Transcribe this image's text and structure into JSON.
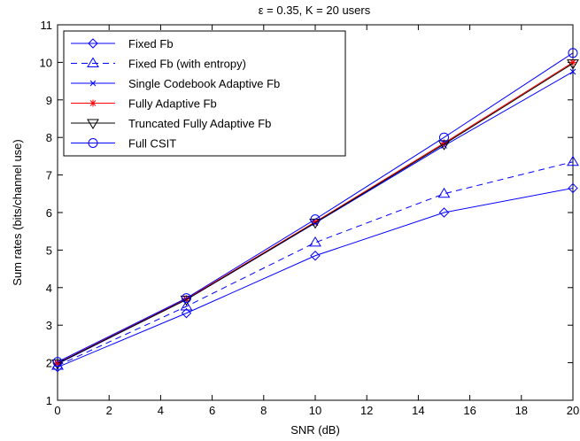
{
  "chart_data": {
    "type": "line",
    "title": "ε =   0.35, K = 20 users",
    "xlabel": "SNR (dB)",
    "ylabel": "Sum rates (bits/channel use)",
    "xlim": [
      0,
      20
    ],
    "ylim": [
      1,
      11
    ],
    "xticks": [
      0,
      2,
      4,
      6,
      8,
      10,
      12,
      14,
      16,
      18,
      20
    ],
    "yticks": [
      1,
      2,
      3,
      4,
      5,
      6,
      7,
      8,
      9,
      10,
      11
    ],
    "grid": false,
    "legend_position": "top-left",
    "x": [
      0,
      5,
      10,
      15,
      20
    ],
    "series": [
      {
        "name": "Fixed Fb",
        "values": [
          1.88,
          3.32,
          4.85,
          6.0,
          6.65
        ],
        "color": "#0000ff",
        "dash": "solid",
        "marker": "diamond"
      },
      {
        "name": "Fixed Fb (with entropy)",
        "values": [
          1.92,
          3.5,
          5.2,
          6.5,
          7.35
        ],
        "color": "#0000ff",
        "dash": "dashed",
        "marker": "triangle-up"
      },
      {
        "name": "Single Codebook Adaptive Fb",
        "values": [
          1.97,
          3.68,
          5.72,
          7.78,
          9.75
        ],
        "color": "#0000ff",
        "dash": "solid",
        "marker": "x"
      },
      {
        "name": "Fully Adaptive Fb",
        "values": [
          1.99,
          3.7,
          5.75,
          7.85,
          10.0
        ],
        "color": "#ff0000",
        "dash": "solid",
        "marker": "star"
      },
      {
        "name": "Truncated Fully Adaptive Fb",
        "values": [
          1.98,
          3.68,
          5.73,
          7.82,
          9.97
        ],
        "color": "#000000",
        "dash": "solid",
        "marker": "triangle-down"
      },
      {
        "name": "Full CSIT",
        "values": [
          2.02,
          3.72,
          5.82,
          8.0,
          10.25
        ],
        "color": "#0000ff",
        "dash": "solid",
        "marker": "circle"
      }
    ]
  }
}
